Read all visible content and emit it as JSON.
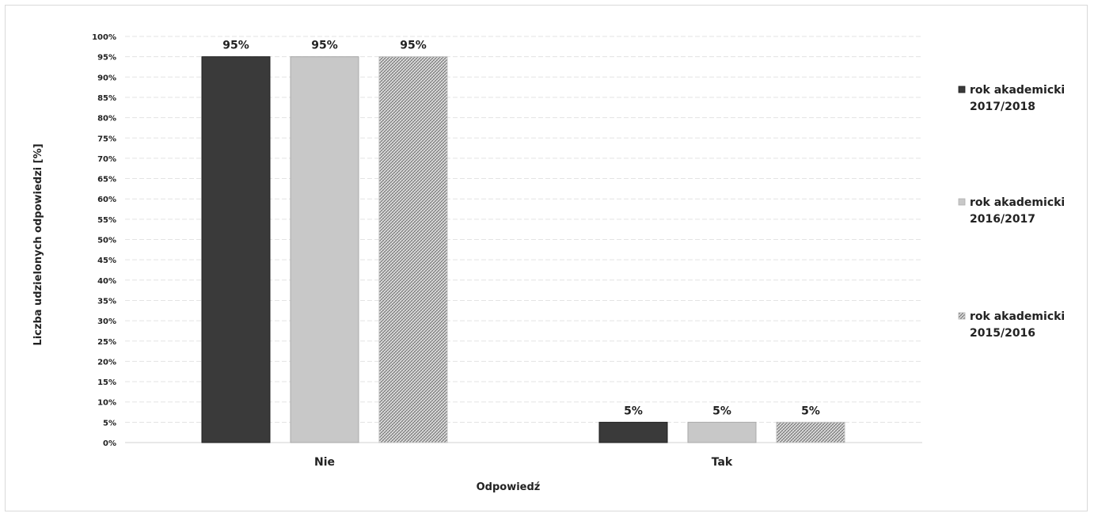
{
  "chart_data": {
    "type": "bar",
    "categories": [
      "Nie",
      "Tak"
    ],
    "series": [
      {
        "name": "rok akademicki 2017/2018",
        "values": [
          95,
          5
        ],
        "color": "#3a3a3a",
        "pattern": "solid"
      },
      {
        "name": "rok akademicki 2016/2017",
        "values": [
          95,
          5
        ],
        "color": "#c8c8c8",
        "pattern": "solid"
      },
      {
        "name": "rok akademicki 2015/2016",
        "values": [
          95,
          5
        ],
        "color": "#9a9a9a",
        "pattern": "hatch"
      }
    ],
    "data_labels": [
      [
        "95%",
        "5%"
      ],
      [
        "95%",
        "5%"
      ],
      [
        "95%",
        "5%"
      ]
    ],
    "xlabel": "Odpowiedź",
    "ylabel": "Liczba udzielonych odpowiedzi [%]",
    "ylim": [
      0,
      100
    ],
    "yticks": [
      "0%",
      "5%",
      "10%",
      "15%",
      "20%",
      "25%",
      "30%",
      "35%",
      "40%",
      "45%",
      "50%",
      "55%",
      "60%",
      "65%",
      "70%",
      "75%",
      "80%",
      "85%",
      "90%",
      "95%",
      "100%"
    ],
    "grid": true,
    "legend_position": "right"
  }
}
